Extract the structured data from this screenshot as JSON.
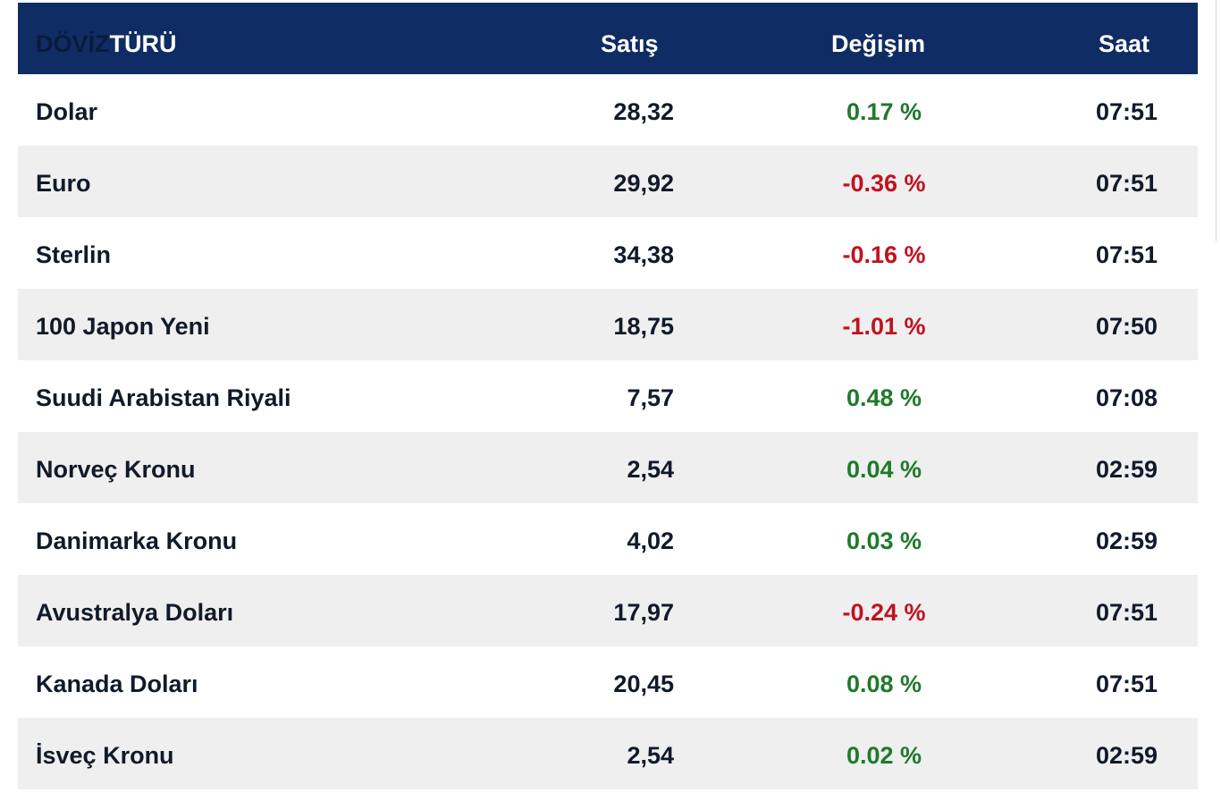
{
  "header": {
    "type_part1": "DÖVİZ",
    "type_part2": "TÜRÜ",
    "sell": "Satış",
    "change": "Değişim",
    "time": "Saat"
  },
  "rows": [
    {
      "name": "Dolar",
      "sell": "28,32",
      "change": "0.17 %",
      "trend": "up",
      "time": "07:51"
    },
    {
      "name": "Euro",
      "sell": "29,92",
      "change": "-0.36 %",
      "trend": "down",
      "time": "07:51"
    },
    {
      "name": "Sterlin",
      "sell": "34,38",
      "change": "-0.16 %",
      "trend": "down",
      "time": "07:51"
    },
    {
      "name": "100 Japon Yeni",
      "sell": "18,75",
      "change": "-1.01 %",
      "trend": "down",
      "time": "07:50"
    },
    {
      "name": "Suudi Arabistan Riyali",
      "sell": "7,57",
      "change": "0.48 %",
      "trend": "up",
      "time": "07:08"
    },
    {
      "name": "Norveç Kronu",
      "sell": "2,54",
      "change": "0.04 %",
      "trend": "up",
      "time": "02:59"
    },
    {
      "name": "Danimarka Kronu",
      "sell": "4,02",
      "change": "0.03 %",
      "trend": "up",
      "time": "02:59"
    },
    {
      "name": "Avustralya Doları",
      "sell": "17,97",
      "change": "-0.24 %",
      "trend": "down",
      "time": "07:51"
    },
    {
      "name": "Kanada Doları",
      "sell": "20,45",
      "change": "0.08 %",
      "trend": "up",
      "time": "07:51"
    },
    {
      "name": "İsveç Kronu",
      "sell": "2,54",
      "change": "0.02 %",
      "trend": "up",
      "time": "02:59"
    }
  ],
  "colors": {
    "header_bg": "#102c64",
    "up": "#1f7a2a",
    "down": "#c1121f",
    "alt_row": "#efefef"
  }
}
